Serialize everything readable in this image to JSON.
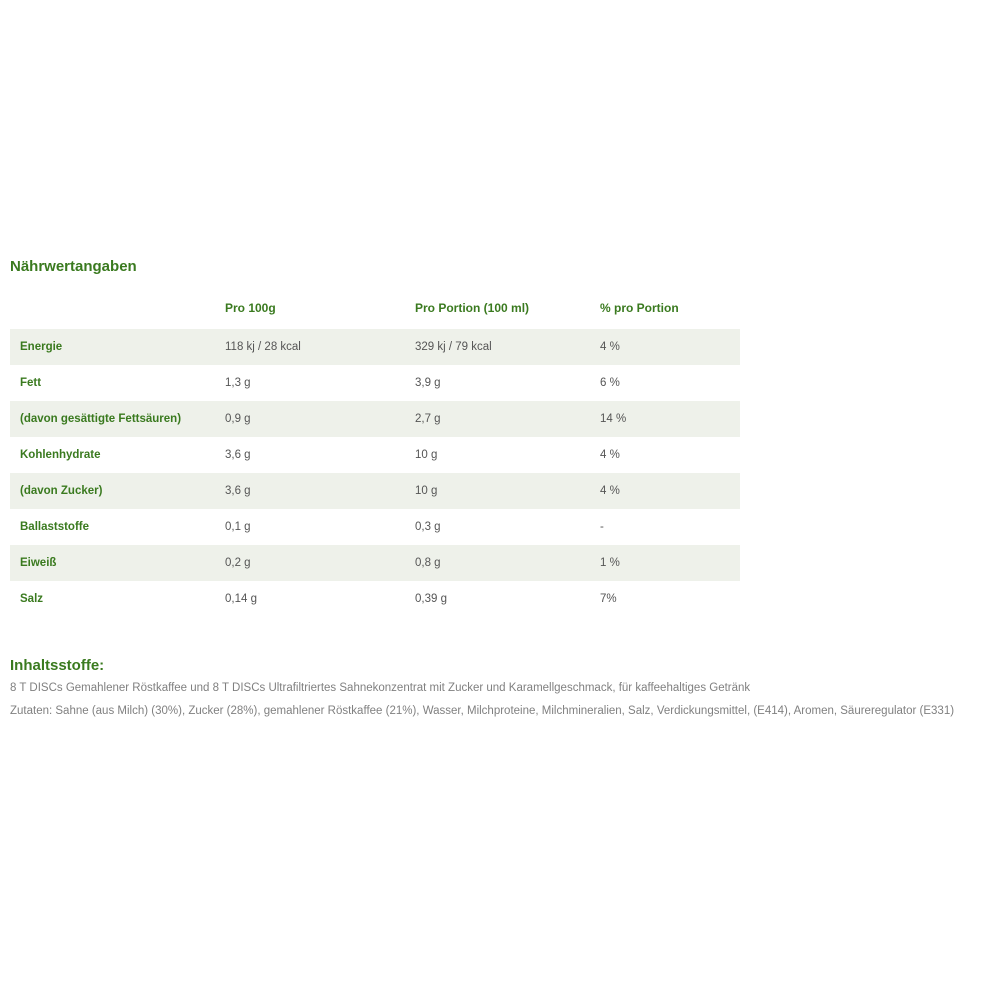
{
  "nutrition": {
    "title": "Nährwertangaben",
    "headers": {
      "empty": "",
      "c1": "Pro 100g",
      "c2": "Pro Portion (100 ml)",
      "c3": "% pro Portion"
    },
    "rows": [
      {
        "label": "Energie",
        "v1": "118 kj / 28 kcal",
        "v2": "329 kj / 79 kcal",
        "v3": "4 %"
      },
      {
        "label": "Fett",
        "v1": "1,3 g",
        "v2": "3,9 g",
        "v3": "6 %"
      },
      {
        "label": "(davon gesättigte Fettsäuren)",
        "v1": "0,9 g",
        "v2": "2,7 g",
        "v3": "14 %"
      },
      {
        "label": "Kohlenhydrate",
        "v1": "3,6 g",
        "v2": "10 g",
        "v3": "4 %"
      },
      {
        "label": "(davon Zucker)",
        "v1": "3,6 g",
        "v2": "10 g",
        "v3": "4 %"
      },
      {
        "label": "Ballaststoffe",
        "v1": "0,1 g",
        "v2": "0,3 g",
        "v3": "-"
      },
      {
        "label": "Eiweiß",
        "v1": "0,2 g",
        "v2": "0,8 g",
        "v3": "1 %"
      },
      {
        "label": "Salz",
        "v1": "0,14 g",
        "v2": "0,39 g",
        "v3": "7%"
      }
    ]
  },
  "ingredients": {
    "title": "Inhaltsstoffe:",
    "line1": "8 T DISCs Gemahlener Röstkaffee und 8 T DISCs Ultrafiltriertes Sahnekonzentrat mit Zucker und Karamellgeschmack, für kaffeehaltiges Getränk",
    "line2": "Zutaten: Sahne (aus Milch) (30%), Zucker (28%), gemahlener Röstkaffee (21%), Wasser, Milchproteine, Milchmineralien, Salz, Verdickungsmittel, (E414), Aromen, Säureregulator (E331)"
  }
}
